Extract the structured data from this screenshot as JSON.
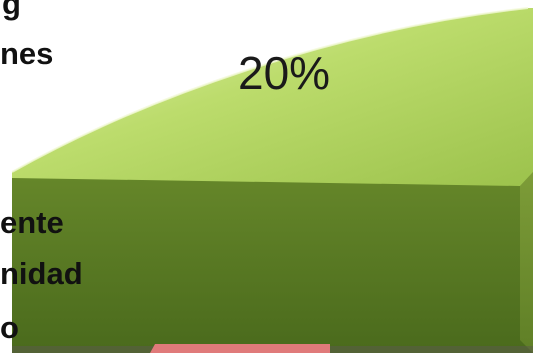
{
  "chart_data": {
    "type": "pie",
    "style": "3d",
    "slices": [
      {
        "label": "20%",
        "value": 20,
        "color": "#b9d96a"
      }
    ],
    "partial_slice_colors": [
      "#e07a7a"
    ],
    "visible_text": [
      "g",
      "nes",
      "ente",
      "nidad",
      "o"
    ]
  }
}
